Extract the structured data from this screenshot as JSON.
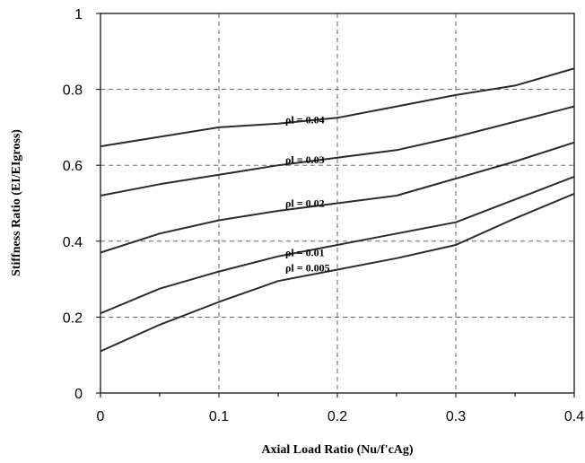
{
  "chart_data": {
    "type": "line",
    "title": "",
    "xlabel": "Axial Load Ratio (Nu/f'cAg)",
    "ylabel": "Stiffness Ratio (EI/EIgross)",
    "xlim": [
      0,
      0.4
    ],
    "ylim": [
      0,
      1
    ],
    "x_ticks": [
      "0",
      "0.1",
      "0.2",
      "0.3",
      "0.4"
    ],
    "y_ticks": [
      "0",
      "0.2",
      "0.4",
      "0.6",
      "0.8",
      "1"
    ],
    "grid": true,
    "x": [
      0,
      0.05,
      0.1,
      0.15,
      0.2,
      0.25,
      0.3,
      0.35,
      0.4
    ],
    "series": [
      {
        "name": "ρl = 0.04",
        "label_at": [
          0.15,
          0.71
        ],
        "values": [
          0.65,
          0.675,
          0.7,
          0.71,
          0.725,
          0.755,
          0.785,
          0.81,
          0.855
        ]
      },
      {
        "name": "ρl = 0.03",
        "label_at": [
          0.15,
          0.605
        ],
        "values": [
          0.52,
          0.55,
          0.575,
          0.6,
          0.62,
          0.64,
          0.675,
          0.715,
          0.755
        ]
      },
      {
        "name": "ρl = 0.02",
        "label_at": [
          0.15,
          0.49
        ],
        "values": [
          0.37,
          0.42,
          0.455,
          0.48,
          0.5,
          0.52,
          0.565,
          0.61,
          0.66
        ]
      },
      {
        "name": "ρl = 0.01",
        "label_at": [
          0.15,
          0.36
        ],
        "values": [
          0.21,
          0.275,
          0.32,
          0.36,
          0.39,
          0.42,
          0.45,
          0.51,
          0.57
        ]
      },
      {
        "name": "ρl = 0.005",
        "label_at": [
          0.15,
          0.32
        ],
        "values": [
          0.11,
          0.18,
          0.24,
          0.295,
          0.325,
          0.355,
          0.39,
          0.46,
          0.525
        ]
      }
    ]
  }
}
